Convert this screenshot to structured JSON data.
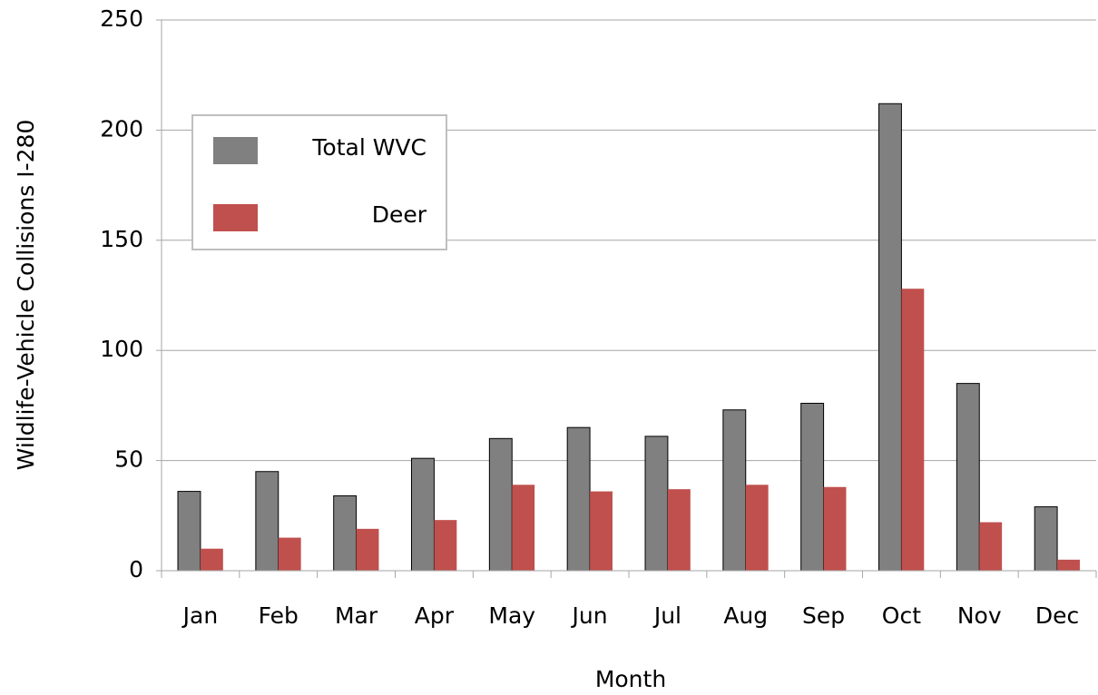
{
  "chart_data": {
    "type": "bar",
    "x_label": "Month",
    "y_label": "Wildlife-Vehicle Collisions I-280",
    "categories": [
      "Jan",
      "Feb",
      "Mar",
      "Apr",
      "May",
      "Jun",
      "Jul",
      "Aug",
      "Sep",
      "Oct",
      "Nov",
      "Dec"
    ],
    "series": [
      {
        "name": "Total WVC",
        "color": "#808080",
        "values": [
          36,
          45,
          34,
          51,
          60,
          65,
          61,
          73,
          76,
          212,
          85,
          29
        ]
      },
      {
        "name": "Deer",
        "color": "#c0504d",
        "values": [
          10,
          15,
          19,
          23,
          39,
          36,
          37,
          39,
          38,
          128,
          22,
          5
        ]
      }
    ],
    "ylim": [
      0,
      250
    ],
    "yticks": [
      0,
      50,
      100,
      150,
      200,
      250
    ],
    "grid": true,
    "legend": "upper left"
  }
}
